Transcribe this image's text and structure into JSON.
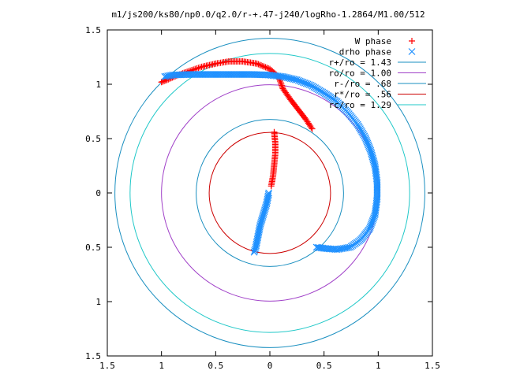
{
  "chart_data": {
    "type": "scatter",
    "title": "m1/js200/ks80/np0.0/q2.0/r-+.47-j240/logRho-1.2864/M1.00/512",
    "xlim": [
      -1.5,
      1.5
    ],
    "ylim": [
      -1.5,
      1.5
    ],
    "x_tick_labels": [
      "1.5",
      "1",
      "0.5",
      "0",
      "0.5",
      "1",
      "1.5"
    ],
    "y_tick_labels": [
      "1.5",
      "1",
      "0.5",
      "0",
      "0.5",
      "1",
      "1.5"
    ],
    "x_ticks": [
      -1.5,
      -1,
      -0.5,
      0,
      0.5,
      1,
      1.5
    ],
    "y_ticks": [
      -1.5,
      -1,
      -0.5,
      0,
      0.5,
      1,
      1.5
    ],
    "legend_position": "top-right",
    "grid": false,
    "series": [
      {
        "name": "W phase",
        "kind": "points",
        "marker": "+",
        "color": "#ff0000",
        "points": [
          [
            0.04,
            0.56
          ],
          [
            0.05,
            0.46
          ],
          [
            0.05,
            0.36
          ],
          [
            0.04,
            0.26
          ],
          [
            0.03,
            0.16
          ],
          [
            0.01,
            0.05
          ],
          [
            0.39,
            0.59
          ],
          [
            0.33,
            0.68
          ],
          [
            0.26,
            0.77
          ],
          [
            0.19,
            0.86
          ],
          [
            0.12,
            0.96
          ],
          [
            0.08,
            1.07
          ],
          [
            0.0,
            1.14
          ],
          [
            -0.12,
            1.19
          ],
          [
            -0.25,
            1.21
          ],
          [
            -0.38,
            1.21
          ],
          [
            -0.5,
            1.19
          ],
          [
            -0.63,
            1.16
          ],
          [
            -0.75,
            1.12
          ],
          [
            -0.86,
            1.08
          ],
          [
            -0.95,
            1.04
          ],
          [
            -1.0,
            1.02
          ]
        ]
      },
      {
        "name": "drho phase",
        "kind": "points",
        "marker": "x",
        "color": "#1e90ff",
        "points": [
          [
            -0.01,
            0.0
          ],
          [
            -0.03,
            -0.1
          ],
          [
            -0.06,
            -0.2
          ],
          [
            -0.09,
            -0.3
          ],
          [
            -0.11,
            -0.4
          ],
          [
            -0.13,
            -0.5
          ],
          [
            -0.15,
            -0.56
          ],
          [
            -0.97,
            1.07
          ],
          [
            -0.9,
            1.085
          ],
          [
            -0.75,
            1.09
          ],
          [
            -0.6,
            1.09
          ],
          [
            -0.45,
            1.09
          ],
          [
            -0.3,
            1.09
          ],
          [
            -0.15,
            1.09
          ],
          [
            0.0,
            1.085
          ],
          [
            0.12,
            1.07
          ],
          [
            0.25,
            1.04
          ],
          [
            0.38,
            0.99
          ],
          [
            0.5,
            0.92
          ],
          [
            0.62,
            0.84
          ],
          [
            0.72,
            0.74
          ],
          [
            0.81,
            0.63
          ],
          [
            0.88,
            0.51
          ],
          [
            0.93,
            0.39
          ],
          [
            0.97,
            0.25
          ],
          [
            0.99,
            0.1
          ],
          [
            0.99,
            -0.05
          ],
          [
            0.97,
            -0.2
          ],
          [
            0.92,
            -0.33
          ],
          [
            0.84,
            -0.43
          ],
          [
            0.74,
            -0.5
          ],
          [
            0.62,
            -0.52
          ],
          [
            0.5,
            -0.51
          ],
          [
            0.43,
            -0.5
          ]
        ]
      },
      {
        "name": "r+/ro = 1.43",
        "kind": "circle",
        "radius": 1.43,
        "color": "#1a8fc0"
      },
      {
        "name": "ro/ro = 1.00",
        "kind": "circle",
        "radius": 1.0,
        "color": "#a040c8"
      },
      {
        "name": "r-/ro = .68",
        "kind": "circle",
        "radius": 0.68,
        "color": "#1a8fc0"
      },
      {
        "name": "r*/ro = .56",
        "kind": "circle",
        "radius": 0.56,
        "color": "#cc0000"
      },
      {
        "name": "rc/ro = 1.29",
        "kind": "circle",
        "radius": 1.29,
        "color": "#20c8c8"
      }
    ]
  }
}
